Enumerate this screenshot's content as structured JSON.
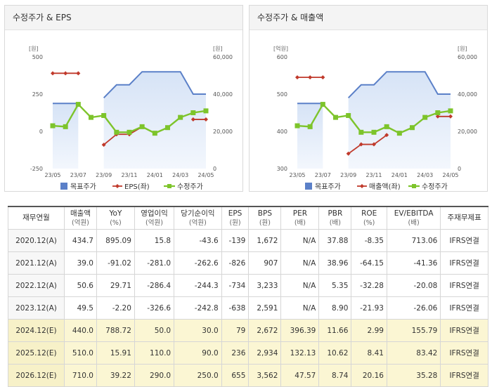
{
  "panels": {
    "left_title": "수정주가 & EPS",
    "right_title": "수정주가 & 매출액"
  },
  "chart_data": [
    {
      "type": "line",
      "title": "수정주가 & EPS",
      "left_unit": "[원]",
      "right_unit": "[원]",
      "x": [
        "23/05",
        "23/06",
        "23/07",
        "23/08",
        "23/09",
        "23/10",
        "23/11",
        "23/12",
        "24/01",
        "24/02",
        "24/03",
        "24/04",
        "24/05"
      ],
      "x_tick_labels": [
        "23/05",
        "23/07",
        "23/09",
        "23/11",
        "24/01",
        "24/03",
        "24/05"
      ],
      "left_ticks": [
        "500",
        "250",
        "0",
        "-250"
      ],
      "right_ticks": [
        "60,000",
        "40,000",
        "20,000",
        "0"
      ],
      "ylim_left": [
        -250,
        500
      ],
      "ylim_right": [
        0,
        60000
      ],
      "series": [
        {
          "name": "목표주가",
          "axis": "right",
          "style": "area",
          "color": "#5b80c8",
          "values": [
            35000,
            35000,
            35000,
            null,
            38000,
            45000,
            45000,
            52000,
            52000,
            52000,
            52000,
            40000,
            40000
          ]
        },
        {
          "name": "EPS(좌)",
          "axis": "left",
          "style": "line",
          "color": "#c0392b",
          "values": [
            390,
            390,
            390,
            null,
            -90,
            -20,
            -20,
            30,
            null,
            null,
            null,
            80,
            80
          ]
        },
        {
          "name": "수정주가",
          "axis": "right",
          "style": "line",
          "color": "#7dc42b",
          "values": [
            23000,
            22500,
            34500,
            27500,
            28500,
            19500,
            19500,
            22500,
            19000,
            22000,
            27500,
            30000,
            31000
          ]
        }
      ],
      "legend": "bottom"
    },
    {
      "type": "line",
      "title": "수정주가 & 매출액",
      "left_unit": "[억원]",
      "right_unit": "[원]",
      "x": [
        "23/05",
        "23/06",
        "23/07",
        "23/08",
        "23/09",
        "23/10",
        "23/11",
        "23/12",
        "24/01",
        "24/02",
        "24/03",
        "24/04",
        "24/05"
      ],
      "x_tick_labels": [
        "23/05",
        "23/07",
        "23/09",
        "23/11",
        "24/01",
        "24/03",
        "24/05"
      ],
      "left_ticks": [
        "600",
        "500",
        "400",
        "300"
      ],
      "right_ticks": [
        "60,000",
        "40,000",
        "20,000",
        "0"
      ],
      "ylim_left": [
        300,
        600
      ],
      "ylim_right": [
        0,
        60000
      ],
      "series": [
        {
          "name": "목표주가",
          "axis": "right",
          "style": "area",
          "color": "#5b80c8",
          "values": [
            35000,
            35000,
            35000,
            null,
            38000,
            45000,
            45000,
            52000,
            52000,
            52000,
            52000,
            40000,
            40000
          ]
        },
        {
          "name": "매출액(좌)",
          "axis": "left",
          "style": "line",
          "color": "#c0392b",
          "values": [
            545,
            545,
            545,
            null,
            340,
            365,
            365,
            390,
            null,
            null,
            null,
            440,
            440
          ]
        },
        {
          "name": "수정주가",
          "axis": "right",
          "style": "line",
          "color": "#7dc42b",
          "values": [
            23000,
            22500,
            34500,
            27500,
            28500,
            19500,
            19500,
            22500,
            19000,
            22000,
            27500,
            30000,
            31000
          ]
        }
      ],
      "legend": "bottom"
    }
  ],
  "table": {
    "headers": [
      {
        "label": "재무연월",
        "unit": ""
      },
      {
        "label": "매출액",
        "unit": "(억원)"
      },
      {
        "label": "YoY",
        "unit": "(%)"
      },
      {
        "label": "영업이익",
        "unit": "(억원)"
      },
      {
        "label": "당기순이익",
        "unit": "(억원)"
      },
      {
        "label": "EPS",
        "unit": "(원)"
      },
      {
        "label": "BPS",
        "unit": "(원)"
      },
      {
        "label": "PER",
        "unit": "(배)"
      },
      {
        "label": "PBR",
        "unit": "(배)"
      },
      {
        "label": "ROE",
        "unit": "(%)"
      },
      {
        "label": "EV/EBITDA",
        "unit": "(배)"
      },
      {
        "label": "주재무제표",
        "unit": ""
      }
    ],
    "rows": [
      {
        "estimate": false,
        "cells": [
          "2020.12(A)",
          "434.7",
          "895.09",
          "15.8",
          "-43.6",
          "-139",
          "1,672",
          "N/A",
          "37.88",
          "-8.35",
          "713.06",
          "IFRS연결"
        ]
      },
      {
        "estimate": false,
        "cells": [
          "2021.12(A)",
          "39.0",
          "-91.02",
          "-281.0",
          "-262.6",
          "-826",
          "907",
          "N/A",
          "38.96",
          "-64.15",
          "-41.36",
          "IFRS연결"
        ]
      },
      {
        "estimate": false,
        "cells": [
          "2022.12(A)",
          "50.6",
          "29.71",
          "-286.4",
          "-244.3",
          "-734",
          "3,233",
          "N/A",
          "5.35",
          "-32.28",
          "-20.08",
          "IFRS연결"
        ]
      },
      {
        "estimate": false,
        "cells": [
          "2023.12(A)",
          "49.5",
          "-2.20",
          "-326.6",
          "-242.8",
          "-638",
          "2,591",
          "N/A",
          "8.90",
          "-21.93",
          "-26.06",
          "IFRS연결"
        ]
      },
      {
        "estimate": true,
        "cells": [
          "2024.12(E)",
          "440.0",
          "788.72",
          "50.0",
          "30.0",
          "79",
          "2,672",
          "396.39",
          "11.66",
          "2.99",
          "155.79",
          "IFRS연결"
        ]
      },
      {
        "estimate": true,
        "cells": [
          "2025.12(E)",
          "510.0",
          "15.91",
          "110.0",
          "90.0",
          "236",
          "2,934",
          "132.13",
          "10.62",
          "8.41",
          "83.42",
          "IFRS연결"
        ]
      },
      {
        "estimate": true,
        "cells": [
          "2026.12(E)",
          "710.0",
          "39.22",
          "290.0",
          "250.0",
          "655",
          "3,562",
          "47.57",
          "8.74",
          "20.16",
          "35.28",
          "IFRS연결"
        ]
      }
    ]
  }
}
